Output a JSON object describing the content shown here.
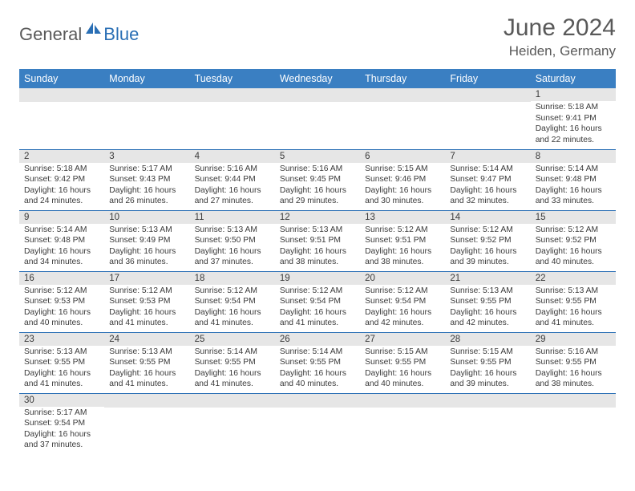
{
  "logo": {
    "text1": "General",
    "text2": "Blue",
    "sail_color": "#2a6fb5"
  },
  "header": {
    "month_title": "June 2024",
    "location": "Heiden, Germany"
  },
  "calendar": {
    "header_bg": "#3a7fc2",
    "header_fg": "#ffffff",
    "daynum_bg": "#e6e6e6",
    "border_color": "#2a6fb5",
    "days": [
      "Sunday",
      "Monday",
      "Tuesday",
      "Wednesday",
      "Thursday",
      "Friday",
      "Saturday"
    ],
    "weeks": [
      [
        {
          "num": "",
          "lines": []
        },
        {
          "num": "",
          "lines": []
        },
        {
          "num": "",
          "lines": []
        },
        {
          "num": "",
          "lines": []
        },
        {
          "num": "",
          "lines": []
        },
        {
          "num": "",
          "lines": []
        },
        {
          "num": "1",
          "lines": [
            "Sunrise: 5:18 AM",
            "Sunset: 9:41 PM",
            "Daylight: 16 hours",
            "and 22 minutes."
          ]
        }
      ],
      [
        {
          "num": "2",
          "lines": [
            "Sunrise: 5:18 AM",
            "Sunset: 9:42 PM",
            "Daylight: 16 hours",
            "and 24 minutes."
          ]
        },
        {
          "num": "3",
          "lines": [
            "Sunrise: 5:17 AM",
            "Sunset: 9:43 PM",
            "Daylight: 16 hours",
            "and 26 minutes."
          ]
        },
        {
          "num": "4",
          "lines": [
            "Sunrise: 5:16 AM",
            "Sunset: 9:44 PM",
            "Daylight: 16 hours",
            "and 27 minutes."
          ]
        },
        {
          "num": "5",
          "lines": [
            "Sunrise: 5:16 AM",
            "Sunset: 9:45 PM",
            "Daylight: 16 hours",
            "and 29 minutes."
          ]
        },
        {
          "num": "6",
          "lines": [
            "Sunrise: 5:15 AM",
            "Sunset: 9:46 PM",
            "Daylight: 16 hours",
            "and 30 minutes."
          ]
        },
        {
          "num": "7",
          "lines": [
            "Sunrise: 5:14 AM",
            "Sunset: 9:47 PM",
            "Daylight: 16 hours",
            "and 32 minutes."
          ]
        },
        {
          "num": "8",
          "lines": [
            "Sunrise: 5:14 AM",
            "Sunset: 9:48 PM",
            "Daylight: 16 hours",
            "and 33 minutes."
          ]
        }
      ],
      [
        {
          "num": "9",
          "lines": [
            "Sunrise: 5:14 AM",
            "Sunset: 9:48 PM",
            "Daylight: 16 hours",
            "and 34 minutes."
          ]
        },
        {
          "num": "10",
          "lines": [
            "Sunrise: 5:13 AM",
            "Sunset: 9:49 PM",
            "Daylight: 16 hours",
            "and 36 minutes."
          ]
        },
        {
          "num": "11",
          "lines": [
            "Sunrise: 5:13 AM",
            "Sunset: 9:50 PM",
            "Daylight: 16 hours",
            "and 37 minutes."
          ]
        },
        {
          "num": "12",
          "lines": [
            "Sunrise: 5:13 AM",
            "Sunset: 9:51 PM",
            "Daylight: 16 hours",
            "and 38 minutes."
          ]
        },
        {
          "num": "13",
          "lines": [
            "Sunrise: 5:12 AM",
            "Sunset: 9:51 PM",
            "Daylight: 16 hours",
            "and 38 minutes."
          ]
        },
        {
          "num": "14",
          "lines": [
            "Sunrise: 5:12 AM",
            "Sunset: 9:52 PM",
            "Daylight: 16 hours",
            "and 39 minutes."
          ]
        },
        {
          "num": "15",
          "lines": [
            "Sunrise: 5:12 AM",
            "Sunset: 9:52 PM",
            "Daylight: 16 hours",
            "and 40 minutes."
          ]
        }
      ],
      [
        {
          "num": "16",
          "lines": [
            "Sunrise: 5:12 AM",
            "Sunset: 9:53 PM",
            "Daylight: 16 hours",
            "and 40 minutes."
          ]
        },
        {
          "num": "17",
          "lines": [
            "Sunrise: 5:12 AM",
            "Sunset: 9:53 PM",
            "Daylight: 16 hours",
            "and 41 minutes."
          ]
        },
        {
          "num": "18",
          "lines": [
            "Sunrise: 5:12 AM",
            "Sunset: 9:54 PM",
            "Daylight: 16 hours",
            "and 41 minutes."
          ]
        },
        {
          "num": "19",
          "lines": [
            "Sunrise: 5:12 AM",
            "Sunset: 9:54 PM",
            "Daylight: 16 hours",
            "and 41 minutes."
          ]
        },
        {
          "num": "20",
          "lines": [
            "Sunrise: 5:12 AM",
            "Sunset: 9:54 PM",
            "Daylight: 16 hours",
            "and 42 minutes."
          ]
        },
        {
          "num": "21",
          "lines": [
            "Sunrise: 5:13 AM",
            "Sunset: 9:55 PM",
            "Daylight: 16 hours",
            "and 42 minutes."
          ]
        },
        {
          "num": "22",
          "lines": [
            "Sunrise: 5:13 AM",
            "Sunset: 9:55 PM",
            "Daylight: 16 hours",
            "and 41 minutes."
          ]
        }
      ],
      [
        {
          "num": "23",
          "lines": [
            "Sunrise: 5:13 AM",
            "Sunset: 9:55 PM",
            "Daylight: 16 hours",
            "and 41 minutes."
          ]
        },
        {
          "num": "24",
          "lines": [
            "Sunrise: 5:13 AM",
            "Sunset: 9:55 PM",
            "Daylight: 16 hours",
            "and 41 minutes."
          ]
        },
        {
          "num": "25",
          "lines": [
            "Sunrise: 5:14 AM",
            "Sunset: 9:55 PM",
            "Daylight: 16 hours",
            "and 41 minutes."
          ]
        },
        {
          "num": "26",
          "lines": [
            "Sunrise: 5:14 AM",
            "Sunset: 9:55 PM",
            "Daylight: 16 hours",
            "and 40 minutes."
          ]
        },
        {
          "num": "27",
          "lines": [
            "Sunrise: 5:15 AM",
            "Sunset: 9:55 PM",
            "Daylight: 16 hours",
            "and 40 minutes."
          ]
        },
        {
          "num": "28",
          "lines": [
            "Sunrise: 5:15 AM",
            "Sunset: 9:55 PM",
            "Daylight: 16 hours",
            "and 39 minutes."
          ]
        },
        {
          "num": "29",
          "lines": [
            "Sunrise: 5:16 AM",
            "Sunset: 9:55 PM",
            "Daylight: 16 hours",
            "and 38 minutes."
          ]
        }
      ],
      [
        {
          "num": "30",
          "lines": [
            "Sunrise: 5:17 AM",
            "Sunset: 9:54 PM",
            "Daylight: 16 hours",
            "and 37 minutes."
          ]
        },
        {
          "num": "",
          "lines": []
        },
        {
          "num": "",
          "lines": []
        },
        {
          "num": "",
          "lines": []
        },
        {
          "num": "",
          "lines": []
        },
        {
          "num": "",
          "lines": []
        },
        {
          "num": "",
          "lines": []
        }
      ]
    ]
  }
}
